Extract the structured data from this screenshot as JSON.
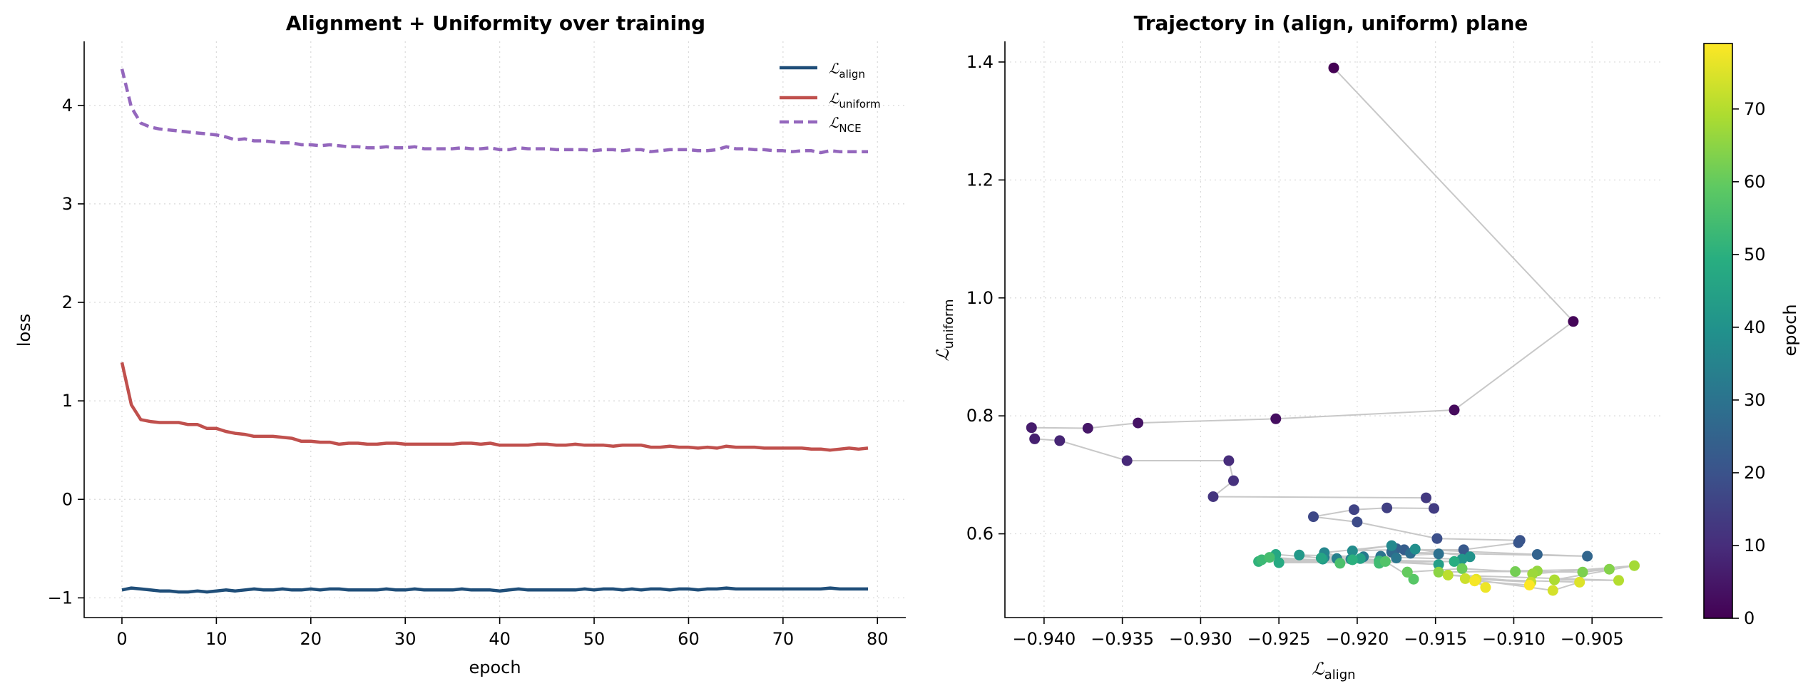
{
  "chart_data": [
    {
      "type": "line",
      "title": "Alignment + Uniformity over training",
      "xlabel": "epoch",
      "ylabel": "loss",
      "xlim": [
        -4,
        83
      ],
      "ylim": [
        -1.2,
        4.65
      ],
      "xticks": [
        0,
        10,
        20,
        30,
        40,
        50,
        60,
        70,
        80
      ],
      "yticks": [
        -1,
        0,
        1,
        2,
        3,
        4
      ],
      "grid": true,
      "legend_position": "top-right",
      "series": [
        {
          "name": "align",
          "color": "#1f4e79",
          "dash": "solid",
          "values": [
            -0.92,
            -0.9,
            -0.91,
            -0.92,
            -0.93,
            -0.93,
            -0.94,
            -0.94,
            -0.93,
            -0.94,
            -0.93,
            -0.92,
            -0.93,
            -0.92,
            -0.91,
            -0.92,
            -0.92,
            -0.91,
            -0.92,
            -0.92,
            -0.91,
            -0.92,
            -0.91,
            -0.91,
            -0.92,
            -0.92,
            -0.92,
            -0.92,
            -0.91,
            -0.92,
            -0.92,
            -0.91,
            -0.92,
            -0.92,
            -0.92,
            -0.92,
            -0.91,
            -0.92,
            -0.92,
            -0.92,
            -0.93,
            -0.92,
            -0.91,
            -0.92,
            -0.92,
            -0.92,
            -0.92,
            -0.92,
            -0.92,
            -0.91,
            -0.92,
            -0.91,
            -0.91,
            -0.92,
            -0.91,
            -0.92,
            -0.91,
            -0.91,
            -0.92,
            -0.91,
            -0.91,
            -0.92,
            -0.91,
            -0.91,
            -0.9,
            -0.91,
            -0.91,
            -0.91,
            -0.91,
            -0.91,
            -0.91,
            -0.91,
            -0.91,
            -0.91,
            -0.91,
            -0.9,
            -0.91,
            -0.91,
            -0.91,
            -0.91
          ]
        },
        {
          "name": "uniform",
          "color": "#c0504d",
          "dash": "solid",
          "values": [
            1.39,
            0.96,
            0.81,
            0.79,
            0.78,
            0.78,
            0.78,
            0.76,
            0.76,
            0.72,
            0.72,
            0.69,
            0.67,
            0.66,
            0.64,
            0.64,
            0.64,
            0.63,
            0.62,
            0.59,
            0.59,
            0.58,
            0.58,
            0.56,
            0.57,
            0.57,
            0.56,
            0.56,
            0.57,
            0.57,
            0.56,
            0.56,
            0.56,
            0.56,
            0.56,
            0.56,
            0.57,
            0.57,
            0.56,
            0.57,
            0.55,
            0.55,
            0.55,
            0.55,
            0.56,
            0.56,
            0.55,
            0.55,
            0.56,
            0.55,
            0.55,
            0.55,
            0.54,
            0.55,
            0.55,
            0.55,
            0.53,
            0.53,
            0.54,
            0.53,
            0.53,
            0.52,
            0.53,
            0.52,
            0.54,
            0.53,
            0.53,
            0.53,
            0.52,
            0.52,
            0.52,
            0.52,
            0.52,
            0.51,
            0.51,
            0.5,
            0.51,
            0.52,
            0.51,
            0.52
          ]
        },
        {
          "name": "NCE",
          "color": "#9467bd",
          "dash": "dashed",
          "values": [
            4.37,
            3.98,
            3.82,
            3.78,
            3.76,
            3.75,
            3.74,
            3.73,
            3.72,
            3.71,
            3.7,
            3.68,
            3.65,
            3.66,
            3.64,
            3.64,
            3.63,
            3.62,
            3.62,
            3.6,
            3.6,
            3.59,
            3.6,
            3.59,
            3.58,
            3.58,
            3.57,
            3.57,
            3.58,
            3.57,
            3.57,
            3.58,
            3.56,
            3.56,
            3.56,
            3.56,
            3.57,
            3.56,
            3.56,
            3.57,
            3.55,
            3.55,
            3.57,
            3.56,
            3.56,
            3.56,
            3.55,
            3.55,
            3.55,
            3.55,
            3.54,
            3.55,
            3.55,
            3.54,
            3.55,
            3.55,
            3.53,
            3.54,
            3.55,
            3.55,
            3.55,
            3.54,
            3.54,
            3.55,
            3.58,
            3.56,
            3.56,
            3.55,
            3.55,
            3.54,
            3.54,
            3.53,
            3.54,
            3.54,
            3.52,
            3.54,
            3.53,
            3.53,
            3.53,
            3.53
          ]
        }
      ]
    },
    {
      "type": "scatter",
      "title": "Trajectory in (align, uniform) plane",
      "xlabel": "align",
      "ylabel": "uniform",
      "colorbar_label": "epoch",
      "colormap": "viridis",
      "color_range": [
        0,
        79
      ],
      "xlim": [
        -0.9425,
        -0.9005
      ],
      "ylim": [
        0.458,
        1.435
      ],
      "xticks": [
        -0.94,
        -0.935,
        -0.93,
        -0.925,
        -0.92,
        -0.915,
        -0.91,
        -0.905
      ],
      "yticks": [
        0.6,
        0.8,
        1.0,
        1.2,
        1.4
      ],
      "colorbar_ticks": [
        0,
        10,
        20,
        30,
        40,
        50,
        60,
        70
      ],
      "grid": true,
      "points": [
        {
          "x": -0.9215,
          "y": 1.39
        },
        {
          "x": -0.9062,
          "y": 0.96
        },
        {
          "x": -0.9138,
          "y": 0.81
        },
        {
          "x": -0.9252,
          "y": 0.795
        },
        {
          "x": -0.934,
          "y": 0.788
        },
        {
          "x": -0.9372,
          "y": 0.779
        },
        {
          "x": -0.9408,
          "y": 0.78
        },
        {
          "x": -0.9406,
          "y": 0.761
        },
        {
          "x": -0.939,
          "y": 0.758
        },
        {
          "x": -0.9347,
          "y": 0.724
        },
        {
          "x": -0.9282,
          "y": 0.724
        },
        {
          "x": -0.9279,
          "y": 0.69
        },
        {
          "x": -0.9292,
          "y": 0.663
        },
        {
          "x": -0.9156,
          "y": 0.661
        },
        {
          "x": -0.9151,
          "y": 0.643
        },
        {
          "x": -0.9181,
          "y": 0.644
        },
        {
          "x": -0.9202,
          "y": 0.641
        },
        {
          "x": -0.9228,
          "y": 0.629
        },
        {
          "x": -0.92,
          "y": 0.62
        },
        {
          "x": -0.9149,
          "y": 0.592
        },
        {
          "x": -0.9096,
          "y": 0.589
        },
        {
          "x": -0.9097,
          "y": 0.585
        },
        {
          "x": -0.9132,
          "y": 0.573
        },
        {
          "x": -0.917,
          "y": 0.573
        },
        {
          "x": -0.9175,
          "y": 0.575
        },
        {
          "x": -0.9085,
          "y": 0.565
        },
        {
          "x": -0.9053,
          "y": 0.562
        },
        {
          "x": -0.9178,
          "y": 0.569
        },
        {
          "x": -0.9166,
          "y": 0.567
        },
        {
          "x": -0.9148,
          "y": 0.566
        },
        {
          "x": -0.9185,
          "y": 0.562
        },
        {
          "x": -0.9175,
          "y": 0.559
        },
        {
          "x": -0.9196,
          "y": 0.561
        },
        {
          "x": -0.9221,
          "y": 0.56
        },
        {
          "x": -0.9213,
          "y": 0.558
        },
        {
          "x": -0.9204,
          "y": 0.557
        },
        {
          "x": -0.9221,
          "y": 0.568
        },
        {
          "x": -0.9178,
          "y": 0.58
        },
        {
          "x": -0.9203,
          "y": 0.571
        },
        {
          "x": -0.9163,
          "y": 0.574
        },
        {
          "x": -0.9128,
          "y": 0.561
        },
        {
          "x": -0.9133,
          "y": 0.557
        },
        {
          "x": -0.9237,
          "y": 0.564
        },
        {
          "x": -0.9222,
          "y": 0.557
        },
        {
          "x": -0.9148,
          "y": 0.548
        },
        {
          "x": -0.9198,
          "y": 0.558
        },
        {
          "x": -0.9223,
          "y": 0.559
        },
        {
          "x": -0.9252,
          "y": 0.565
        },
        {
          "x": -0.925,
          "y": 0.551
        },
        {
          "x": -0.9138,
          "y": 0.553
        },
        {
          "x": -0.9203,
          "y": 0.556
        },
        {
          "x": -0.9263,
          "y": 0.553
        },
        {
          "x": -0.9186,
          "y": 0.554
        },
        {
          "x": -0.9261,
          "y": 0.556
        },
        {
          "x": -0.9186,
          "y": 0.55
        },
        {
          "x": -0.9256,
          "y": 0.56
        },
        {
          "x": -0.9211,
          "y": 0.55
        },
        {
          "x": -0.9182,
          "y": 0.553
        },
        {
          "x": -0.9164,
          "y": 0.523
        },
        {
          "x": -0.9168,
          "y": 0.535
        },
        {
          "x": -0.9168,
          "y": 0.535
        },
        {
          "x": -0.9133,
          "y": 0.541
        },
        {
          "x": -0.9099,
          "y": 0.536
        },
        {
          "x": -0.9056,
          "y": 0.535
        },
        {
          "x": -0.9039,
          "y": 0.54
        },
        {
          "x": -0.9148,
          "y": 0.535
        },
        {
          "x": -0.9085,
          "y": 0.537
        },
        {
          "x": -0.9088,
          "y": 0.532
        },
        {
          "x": -0.9023,
          "y": 0.546
        },
        {
          "x": -0.9074,
          "y": 0.522
        },
        {
          "x": -0.9033,
          "y": 0.521
        },
        {
          "x": -0.9142,
          "y": 0.53
        },
        {
          "x": -0.9089,
          "y": 0.518
        },
        {
          "x": -0.9131,
          "y": 0.524
        },
        {
          "x": -0.9075,
          "y": 0.504
        },
        {
          "x": -0.9058,
          "y": 0.518
        },
        {
          "x": -0.9124,
          "y": 0.523
        },
        {
          "x": -0.9118,
          "y": 0.509
        },
        {
          "x": -0.9125,
          "y": 0.52
        },
        {
          "x": -0.909,
          "y": 0.513
        }
      ]
    }
  ]
}
